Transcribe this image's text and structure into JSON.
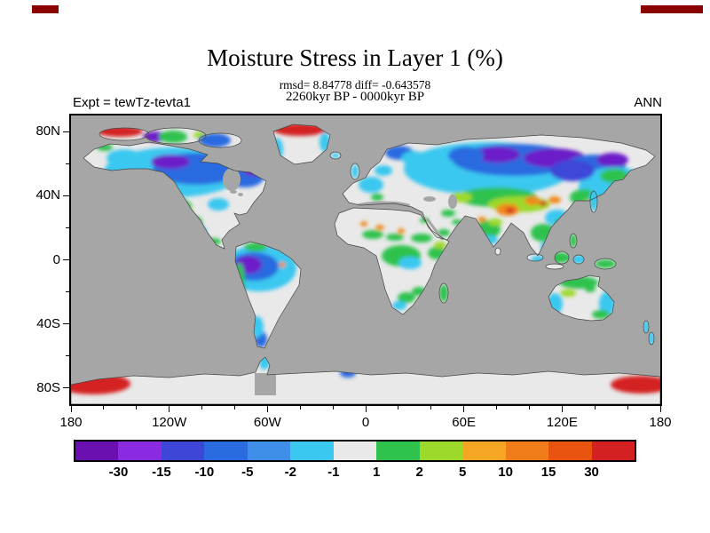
{
  "header": {
    "title": "Moisture Stress in Layer 1 (%)",
    "stats_line": "rmsd= 8.84778 diff= -0.643578",
    "experiment_label": "Expt = tewTz-tevta1",
    "comparison_label": "2260kyr BP - 0000kyr BP",
    "season_label": "ANN"
  },
  "chart_data": {
    "type": "heatmap",
    "subtype": "filled-contour anomaly world map, equirectangular projection",
    "title": "Moisture Stress in Layer 1 (%)",
    "units": "%",
    "stats": {
      "rmsd": 8.84778,
      "diff": -0.643578
    },
    "experiment": "tewTz-tevta1",
    "comparison": "2260kyr BP - 0000kyr BP",
    "season": "ANN",
    "lon_range": [
      -180,
      180
    ],
    "lat_range": [
      -90,
      90
    ],
    "axes": {
      "lat_ticks": [
        {
          "label": "80N",
          "value": 80
        },
        {
          "label": "40N",
          "value": 40
        },
        {
          "label": "0",
          "value": 0
        },
        {
          "label": "40S",
          "value": -40
        },
        {
          "label": "80S",
          "value": -80
        }
      ],
      "lon_ticks": [
        {
          "label": "180",
          "value": -180
        },
        {
          "label": "120W",
          "value": -120
        },
        {
          "label": "60W",
          "value": -60
        },
        {
          "label": "0",
          "value": 0
        },
        {
          "label": "60E",
          "value": 60
        },
        {
          "label": "120E",
          "value": 120
        },
        {
          "label": "180",
          "value": 180
        }
      ]
    },
    "colorbar": {
      "orientation": "horizontal",
      "levels": [
        -30,
        -15,
        -10,
        -5,
        -2,
        -1,
        1,
        2,
        5,
        10,
        15,
        30
      ],
      "tick_labels": [
        "-30",
        "-15",
        "-10",
        "-5",
        "-2",
        "-1",
        "1",
        "2",
        "5",
        "10",
        "15",
        "30"
      ],
      "colors": [
        "#6A0FB0",
        "#8A2BE2",
        "#3E46D8",
        "#2B6BE0",
        "#3F8FE8",
        "#3BC8F0",
        "#E9E9E9",
        "#2FC24D",
        "#9CD92B",
        "#F5A623",
        "#F07D1A",
        "#E8540F",
        "#D42020"
      ]
    },
    "map_colors": {
      "ocean": "#A6A6A6",
      "neutral_land": "#E9E9E9"
    },
    "notable_features": [
      "Strong negative (blue/purple) anomalies over Canada, the Amazon basin and Siberia",
      "Positive (green/orange) anomalies over central Asia, Tibet, the Sahel, western USA and northern Australia",
      "Saturated red patches on northern Greenland, the Arctic Canada coast and both edges of Antarctica"
    ]
  }
}
